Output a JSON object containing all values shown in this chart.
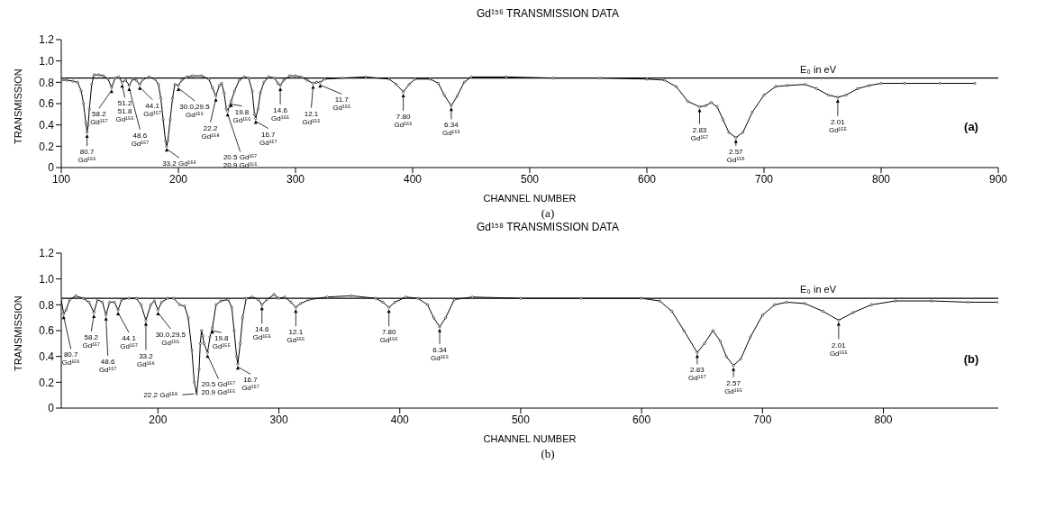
{
  "chart_data": [
    {
      "type": "line",
      "title": "Gd¹⁵⁶ TRANSMISSION DATA",
      "xlabel": "CHANNEL NUMBER",
      "ylabel": "TRANSMISSION",
      "xlim": [
        100,
        900
      ],
      "xticks": [
        100,
        200,
        300,
        400,
        500,
        600,
        700,
        800,
        900
      ],
      "ylim": [
        0,
        1.2
      ],
      "yticks": [
        0,
        0.2,
        0.4,
        0.6,
        0.8,
        {
          "value": 1,
          "label": "1.0"
        },
        1.2
      ],
      "marker": "circle",
      "line_style": "solid",
      "ref_lines": [
        {
          "axis": "y",
          "value": 0.84,
          "label": "E₀ in eV",
          "color": "#000000"
        }
      ],
      "series": [
        {
          "color": "#000000",
          "x": [
            100,
            105,
            110,
            114,
            117,
            119,
            121,
            122,
            123,
            124,
            126,
            128,
            132,
            136,
            140,
            143,
            146,
            149,
            152,
            155,
            158,
            161,
            164,
            167,
            170,
            175,
            180,
            183,
            185,
            187,
            189,
            190,
            191,
            193,
            195,
            197,
            200,
            203,
            207,
            212,
            220,
            226,
            229,
            232,
            235,
            237,
            239,
            241,
            242,
            244,
            245,
            248,
            252,
            256,
            260,
            263,
            265,
            266,
            268,
            270,
            273,
            277,
            282,
            285,
            287,
            290,
            295,
            300,
            305,
            310,
            315,
            318,
            321,
            325,
            340,
            360,
            380,
            386,
            392,
            397,
            402,
            415,
            422,
            427,
            433,
            438,
            444,
            450,
            480,
            520,
            560,
            600,
            615,
            625,
            635,
            645,
            650,
            655,
            660,
            665,
            670,
            676,
            682,
            690,
            700,
            710,
            720,
            735,
            745,
            755,
            763,
            770,
            780,
            790,
            800,
            820,
            850,
            880
          ],
          "values": [
            0.82,
            0.82,
            0.81,
            0.8,
            0.72,
            0.6,
            0.42,
            0.33,
            0.4,
            0.55,
            0.78,
            0.87,
            0.87,
            0.86,
            0.83,
            0.75,
            0.84,
            0.85,
            0.8,
            0.82,
            0.77,
            0.83,
            0.82,
            0.78,
            0.83,
            0.85,
            0.83,
            0.78,
            0.65,
            0.45,
            0.25,
            0.2,
            0.25,
            0.45,
            0.65,
            0.78,
            0.77,
            0.82,
            0.85,
            0.86,
            0.86,
            0.83,
            0.75,
            0.67,
            0.77,
            0.79,
            0.7,
            0.55,
            0.53,
            0.58,
            0.62,
            0.72,
            0.82,
            0.85,
            0.84,
            0.72,
            0.5,
            0.46,
            0.55,
            0.7,
            0.8,
            0.85,
            0.84,
            0.79,
            0.77,
            0.82,
            0.86,
            0.86,
            0.85,
            0.82,
            0.79,
            0.8,
            0.8,
            0.83,
            0.84,
            0.85,
            0.83,
            0.78,
            0.71,
            0.78,
            0.83,
            0.83,
            0.79,
            0.68,
            0.58,
            0.67,
            0.8,
            0.85,
            0.85,
            0.84,
            0.84,
            0.83,
            0.82,
            0.76,
            0.62,
            0.57,
            0.58,
            0.61,
            0.57,
            0.45,
            0.33,
            0.28,
            0.33,
            0.52,
            0.68,
            0.76,
            0.77,
            0.78,
            0.74,
            0.68,
            0.66,
            0.68,
            0.74,
            0.77,
            0.79,
            0.79,
            0.79,
            0.79
          ]
        }
      ],
      "annotations": [
        {
          "text": "80.7\nGd¹⁵⁶",
          "x": 122,
          "y": 0.33
        },
        {
          "text": "58.2\nGd¹⁵⁷",
          "x": 143,
          "y": 0.75
        },
        {
          "text": "51.2\n51.8\nGd¹⁵⁵",
          "x": 152,
          "y": 0.8
        },
        {
          "text": "48.6\nGd¹⁵⁷",
          "x": 158,
          "y": 0.77
        },
        {
          "text": "44.1\nGd¹⁵⁷",
          "x": 167,
          "y": 0.78
        },
        {
          "text": "33.2 Gd¹⁵⁶",
          "x": 190,
          "y": 0.2
        },
        {
          "text": "30.0,29.5\nGd¹⁵⁵",
          "x": 200,
          "y": 0.77
        },
        {
          "text": "22.2\nGd¹⁵⁸",
          "x": 232,
          "y": 0.67
        },
        {
          "text": "20.5 Gd¹⁵⁷\n20.9 Gd¹⁵⁵",
          "x": 242,
          "y": 0.53
        },
        {
          "text": "19.8\nGd¹⁵⁵",
          "x": 245,
          "y": 0.62
        },
        {
          "text": "16.7\nGd¹⁵⁷",
          "x": 266,
          "y": 0.46
        },
        {
          "text": "14.6\nGd¹⁵⁵",
          "x": 287,
          "y": 0.77
        },
        {
          "text": "12.1\nGd¹⁵⁵",
          "x": 315,
          "y": 0.79
        },
        {
          "text": "11.7\nGd¹⁵⁵",
          "x": 321,
          "y": 0.8
        },
        {
          "text": "7.80\nGd¹⁵⁵",
          "x": 392,
          "y": 0.71
        },
        {
          "text": "6.34\nGd¹⁵⁵",
          "x": 433,
          "y": 0.58
        },
        {
          "text": "2.83\nGd¹⁵⁷",
          "x": 645,
          "y": 0.57
        },
        {
          "text": "2.57\nGd¹⁵⁶",
          "x": 676,
          "y": 0.28
        },
        {
          "text": "2.01\nGd¹⁵⁵",
          "x": 763,
          "y": 0.66
        },
        "(a)",
        "(a)"
      ]
    },
    {
      "type": "line",
      "title": "Gd¹⁵⁸ TRANSMISSION DATA",
      "xlabel": "CHANNEL NUMBER",
      "ylabel": "TRANSMISSION",
      "xlim": [
        120,
        895
      ],
      "xticks": [
        200,
        300,
        400,
        500,
        600,
        700,
        800
      ],
      "ylim": [
        0,
        1.2
      ],
      "yticks": [
        0,
        0.2,
        0.4,
        0.6,
        0.8,
        {
          "value": 1,
          "label": "1.0"
        },
        1.2
      ],
      "marker": "circle",
      "line_style": "solid",
      "ref_lines": [
        {
          "axis": "y",
          "value": 0.85,
          "label": "E₀ in eV",
          "color": "#000000"
        }
      ],
      "series": [
        {
          "color": "#000000",
          "x": [
            120,
            122,
            124,
            127,
            132,
            138,
            143,
            147,
            150,
            154,
            157,
            160,
            164,
            167,
            170,
            176,
            182,
            186,
            190,
            194,
            197,
            200,
            203,
            208,
            213,
            218,
            222,
            225,
            228,
            230,
            232,
            234,
            235,
            236,
            237,
            238,
            241,
            243,
            245,
            248,
            252,
            258,
            261,
            263,
            265,
            266,
            268,
            270,
            273,
            278,
            283,
            286,
            290,
            296,
            300,
            305,
            310,
            314,
            318,
            325,
            340,
            360,
            380,
            386,
            391,
            396,
            405,
            415,
            423,
            428,
            433,
            438,
            445,
            460,
            500,
            550,
            600,
            615,
            625,
            635,
            646,
            652,
            659,
            665,
            670,
            676,
            682,
            690,
            700,
            710,
            720,
            735,
            750,
            763,
            775,
            790,
            810,
            840,
            870,
            895
          ],
          "values": [
            0.84,
            0.73,
            0.76,
            0.84,
            0.87,
            0.85,
            0.82,
            0.74,
            0.84,
            0.82,
            0.72,
            0.82,
            0.82,
            0.76,
            0.84,
            0.85,
            0.85,
            0.8,
            0.68,
            0.8,
            0.83,
            0.76,
            0.82,
            0.85,
            0.85,
            0.8,
            0.79,
            0.7,
            0.45,
            0.2,
            0.11,
            0.3,
            0.5,
            0.6,
            0.56,
            0.5,
            0.43,
            0.55,
            0.62,
            0.8,
            0.83,
            0.84,
            0.78,
            0.6,
            0.4,
            0.34,
            0.5,
            0.7,
            0.85,
            0.86,
            0.84,
            0.8,
            0.84,
            0.88,
            0.85,
            0.86,
            0.82,
            0.78,
            0.81,
            0.84,
            0.86,
            0.87,
            0.85,
            0.82,
            0.78,
            0.82,
            0.86,
            0.85,
            0.8,
            0.7,
            0.63,
            0.7,
            0.84,
            0.86,
            0.85,
            0.85,
            0.85,
            0.83,
            0.75,
            0.6,
            0.43,
            0.5,
            0.6,
            0.52,
            0.4,
            0.33,
            0.38,
            0.55,
            0.72,
            0.8,
            0.82,
            0.81,
            0.75,
            0.68,
            0.74,
            0.8,
            0.83,
            0.83,
            0.82,
            0.82
          ]
        }
      ],
      "annotations": [
        {
          "text": "80.7\nGd¹⁵⁶",
          "x": 122,
          "y": 0.73
        },
        {
          "text": "58.2\nGd¹⁵⁷",
          "x": 147,
          "y": 0.74
        },
        {
          "text": "48.6\nGd¹⁵⁷",
          "x": 157,
          "y": 0.72
        },
        {
          "text": "44.1\nGd¹⁵⁷",
          "x": 167,
          "y": 0.76
        },
        {
          "text": "33.2\nGd¹⁵⁶",
          "x": 190,
          "y": 0.68
        },
        {
          "text": "30.0,29.5\nGd¹⁵⁵",
          "x": 200,
          "y": 0.76
        },
        {
          "text": "22.2 Gd¹⁵⁸",
          "x": 232,
          "y": 0.11
        },
        {
          "text": "20.5 Gd¹⁵⁷\n20.9 Gd¹⁵⁵",
          "x": 241,
          "y": 0.43
        },
        {
          "text": "19.8\nGd¹⁵⁵",
          "x": 245,
          "y": 0.62
        },
        {
          "text": "16.7\nGd¹⁵⁷",
          "x": 266,
          "y": 0.34
        },
        {
          "text": "14.6\nGd¹⁵⁵",
          "x": 286,
          "y": 0.8
        },
        {
          "text": "12.1\nGd¹⁵⁵",
          "x": 314,
          "y": 0.78
        },
        {
          "text": "7.80\nGd¹⁵⁵",
          "x": 391,
          "y": 0.78
        },
        {
          "text": "6.34\nGd¹⁵⁵",
          "x": 433,
          "y": 0.63
        },
        {
          "text": "2.83\nGd¹⁵⁷",
          "x": 646,
          "y": 0.43
        },
        {
          "text": "2.57\nGd¹⁵⁵",
          "x": 676,
          "y": 0.33
        },
        {
          "text": "2.01\nGd¹⁵⁵",
          "x": 763,
          "y": 0.68
        },
        "(b)",
        "(b)"
      ]
    }
  ]
}
